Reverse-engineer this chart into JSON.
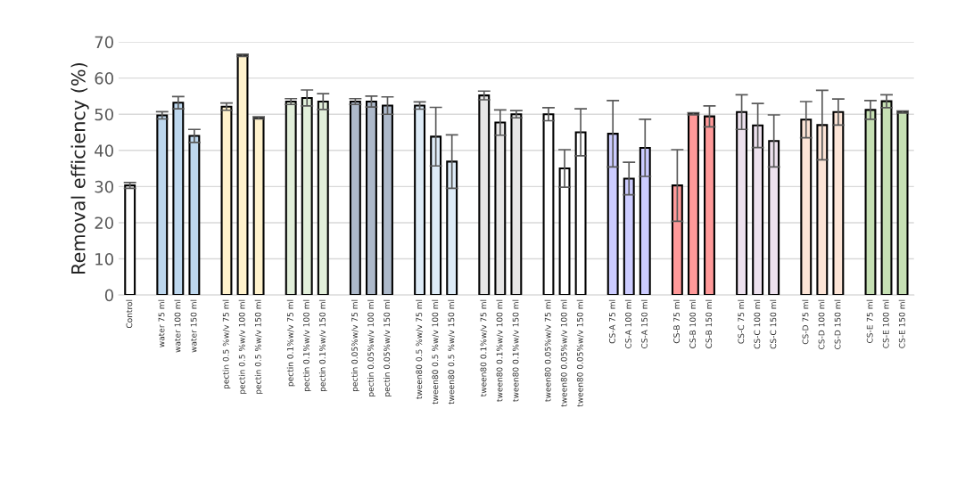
{
  "chart_data": {
    "type": "bar",
    "ylabel": "Removal efficiency (%)",
    "categories": [
      "Control",
      null,
      "water 75 ml",
      "water 100 ml",
      "water 150 ml",
      null,
      "pectin 0.5 %w/v 75 ml",
      "pectin 0.5 %w/v 100 ml",
      "pectin 0.5 %w/v 150 ml",
      null,
      "pectin 0.1%w/v 75 ml",
      "pectin 0.1%w/v 100 ml",
      "pectin 0.1%w/v 150 ml",
      null,
      "pectin 0.05%w/v 75 ml",
      "pectin 0.05%w/v 100 ml",
      "pectin 0.05%w/v 150 ml",
      null,
      "tween80 0.5 %w/v 75 ml",
      "tween80 0.5 %w/v 100 ml",
      "tween80 0.5 %w/v 150 ml",
      null,
      "tween80 0.1%w/v 75 ml",
      "tween80 0.1%w/v 100 ml",
      "tween80 0.1%w/v 150 ml",
      null,
      "tween80 0.05%w/v 75 ml",
      "tween80 0.05%w/v 100 ml",
      "tween80 0.05%w/v 150 ml",
      null,
      "CS-A 75 ml",
      "CS-A 100 ml",
      "CS-A 150 ml",
      null,
      "CS-B 75 ml",
      "CS-B 100 ml",
      "CS-B 150 ml",
      null,
      "CS-C 75 ml",
      "CS-C 100 ml",
      "CS-C 150 ml",
      null,
      "CS-D 75 ml",
      "CS-D 100 ml",
      "CS-D 150 ml",
      null,
      "CS-E 75 ml",
      "CS-E 100 ml",
      "CS-E 150 ml"
    ],
    "values": [
      30.3,
      null,
      49.7,
      53.2,
      44.0,
      null,
      52.1,
      66.3,
      49.0,
      null,
      53.5,
      54.5,
      53.5,
      null,
      53.5,
      53.5,
      52.4,
      null,
      52.4,
      43.8,
      36.9,
      null,
      55.2,
      47.7,
      50.0,
      null,
      50.0,
      35.0,
      45.0,
      null,
      44.6,
      32.2,
      40.7,
      null,
      30.3,
      50.1,
      49.4,
      null,
      50.6,
      46.9,
      42.6,
      null,
      48.5,
      47.0,
      50.6,
      null,
      51.2,
      53.6,
      50.6
    ],
    "errors": [
      0.8,
      null,
      1.0,
      1.7,
      1.8,
      null,
      1.0,
      0.3,
      0.3,
      null,
      0.8,
      2.2,
      2.2,
      null,
      0.8,
      1.5,
      2.4,
      null,
      1.0,
      8.1,
      7.4,
      null,
      1.2,
      3.5,
      1.0,
      null,
      1.8,
      5.2,
      6.5,
      null,
      9.2,
      4.5,
      7.9,
      null,
      9.9,
      0.3,
      2.9,
      null,
      4.8,
      6.1,
      7.2,
      null,
      5.0,
      9.6,
      3.6,
      null,
      2.6,
      1.8,
      0.3
    ],
    "colors": [
      "#ffffff",
      null,
      "#bdd7ee",
      "#bdd7ee",
      "#bdd7ee",
      null,
      "#fff2cc",
      "#fff2cc",
      "#fff2cc",
      null,
      "#e2efda",
      "#e2efda",
      "#e2efda",
      null,
      "#adb9ca",
      "#adb9ca",
      "#adb9ca",
      null,
      "#ddebf7",
      "#ddebf7",
      "#ddebf7",
      null,
      "#e7e6e6",
      "#e7e6e6",
      "#e7e6e6",
      null,
      "#ffffff",
      "#ffffff",
      "#ffffff",
      null,
      "#ccccff",
      "#ccccff",
      "#ccccff",
      null,
      "#ff9999",
      "#ff9999",
      "#ff9999",
      null,
      "#ede1ee",
      "#ede1ee",
      "#ede1ee",
      null,
      "#fce4d6",
      "#fce4d6",
      "#fce4d6",
      null,
      "#c6e0b4",
      "#c6e0b4",
      "#c6e0b4"
    ],
    "ylim": [
      0,
      70
    ],
    "yticks": [
      0,
      10,
      20,
      30,
      40,
      50,
      60,
      70
    ],
    "grid": "y",
    "legend": false
  }
}
